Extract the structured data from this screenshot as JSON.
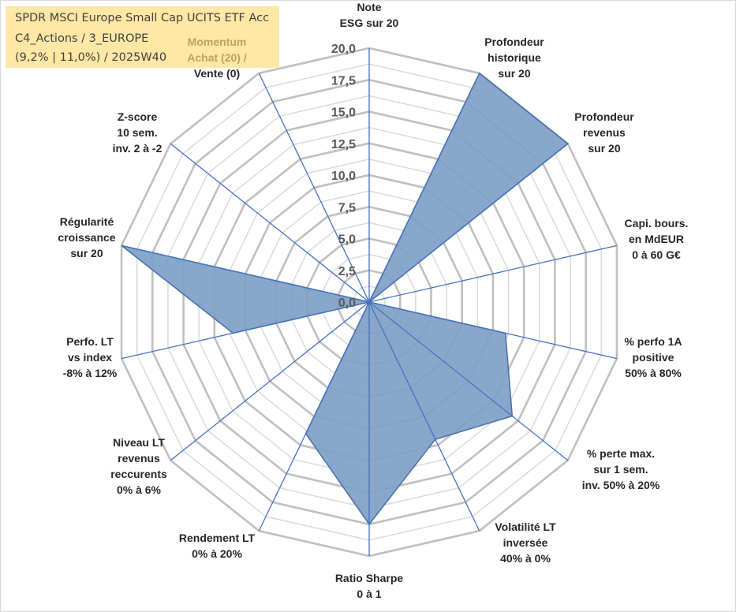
{
  "info": {
    "line1": "SPDR MSCI Europe Small Cap UCITS ETF Acc",
    "line2": "C4_Actions / 3_EUROPE",
    "line3": "(9,2% | 11,0%) / 2025W40"
  },
  "chart_data": {
    "type": "radar",
    "title": "",
    "rmin": 0,
    "rmax": 20,
    "ticks": [
      "0,0",
      "2,5",
      "5,0",
      "7,5",
      "10,0",
      "12,5",
      "15,0",
      "17,5",
      "20,0"
    ],
    "axes": [
      {
        "lines": [
          "Note",
          "ESG sur 20"
        ]
      },
      {
        "lines": [
          "Profondeur",
          "historique",
          "sur 20"
        ]
      },
      {
        "lines": [
          "Profondeur",
          "revenus",
          "sur 20"
        ]
      },
      {
        "lines": [
          "Capi. bours.",
          "en MdEUR",
          "0 à 60 G€"
        ]
      },
      {
        "lines": [
          "% perfo 1A",
          "positive",
          "50% à 80%"
        ]
      },
      {
        "lines": [
          "% perte max.",
          "sur 1 sem.",
          "inv. 50% à 20%"
        ]
      },
      {
        "lines": [
          "Volatilité LT",
          "inversée",
          "40% à 0%"
        ]
      },
      {
        "lines": [
          "Ratio Sharpe",
          "0 à 1"
        ]
      },
      {
        "lines": [
          "Rendement LT",
          "0% à 20%"
        ]
      },
      {
        "lines": [
          "Niveau LT",
          "revenus",
          "reccurents",
          "0% à 6%"
        ]
      },
      {
        "lines": [
          "Perfo. LT",
          "vs index",
          "-8% à 12%"
        ]
      },
      {
        "lines": [
          "Régularité",
          "croissance",
          "sur 20"
        ]
      },
      {
        "lines": [
          "Z-score",
          "10 sem.",
          "inv. 2 à -2"
        ]
      },
      {
        "lines": [
          "Momentum",
          "Achat (20) /",
          "Vente (0)"
        ]
      }
    ],
    "series": [
      {
        "name": "SPDR MSCI Europe Small Cap UCITS ETF Acc",
        "values": [
          0,
          20,
          20,
          0,
          11,
          14.4,
          12,
          17.5,
          11.5,
          0,
          11,
          20,
          0,
          0
        ]
      }
    ],
    "colors": {
      "fill": "#7f9fc5",
      "stroke": "#4a72a8",
      "spoke": "#4472c4",
      "grid_major": "#bfbfbf",
      "grid_minor": "#d9d9d9"
    }
  }
}
